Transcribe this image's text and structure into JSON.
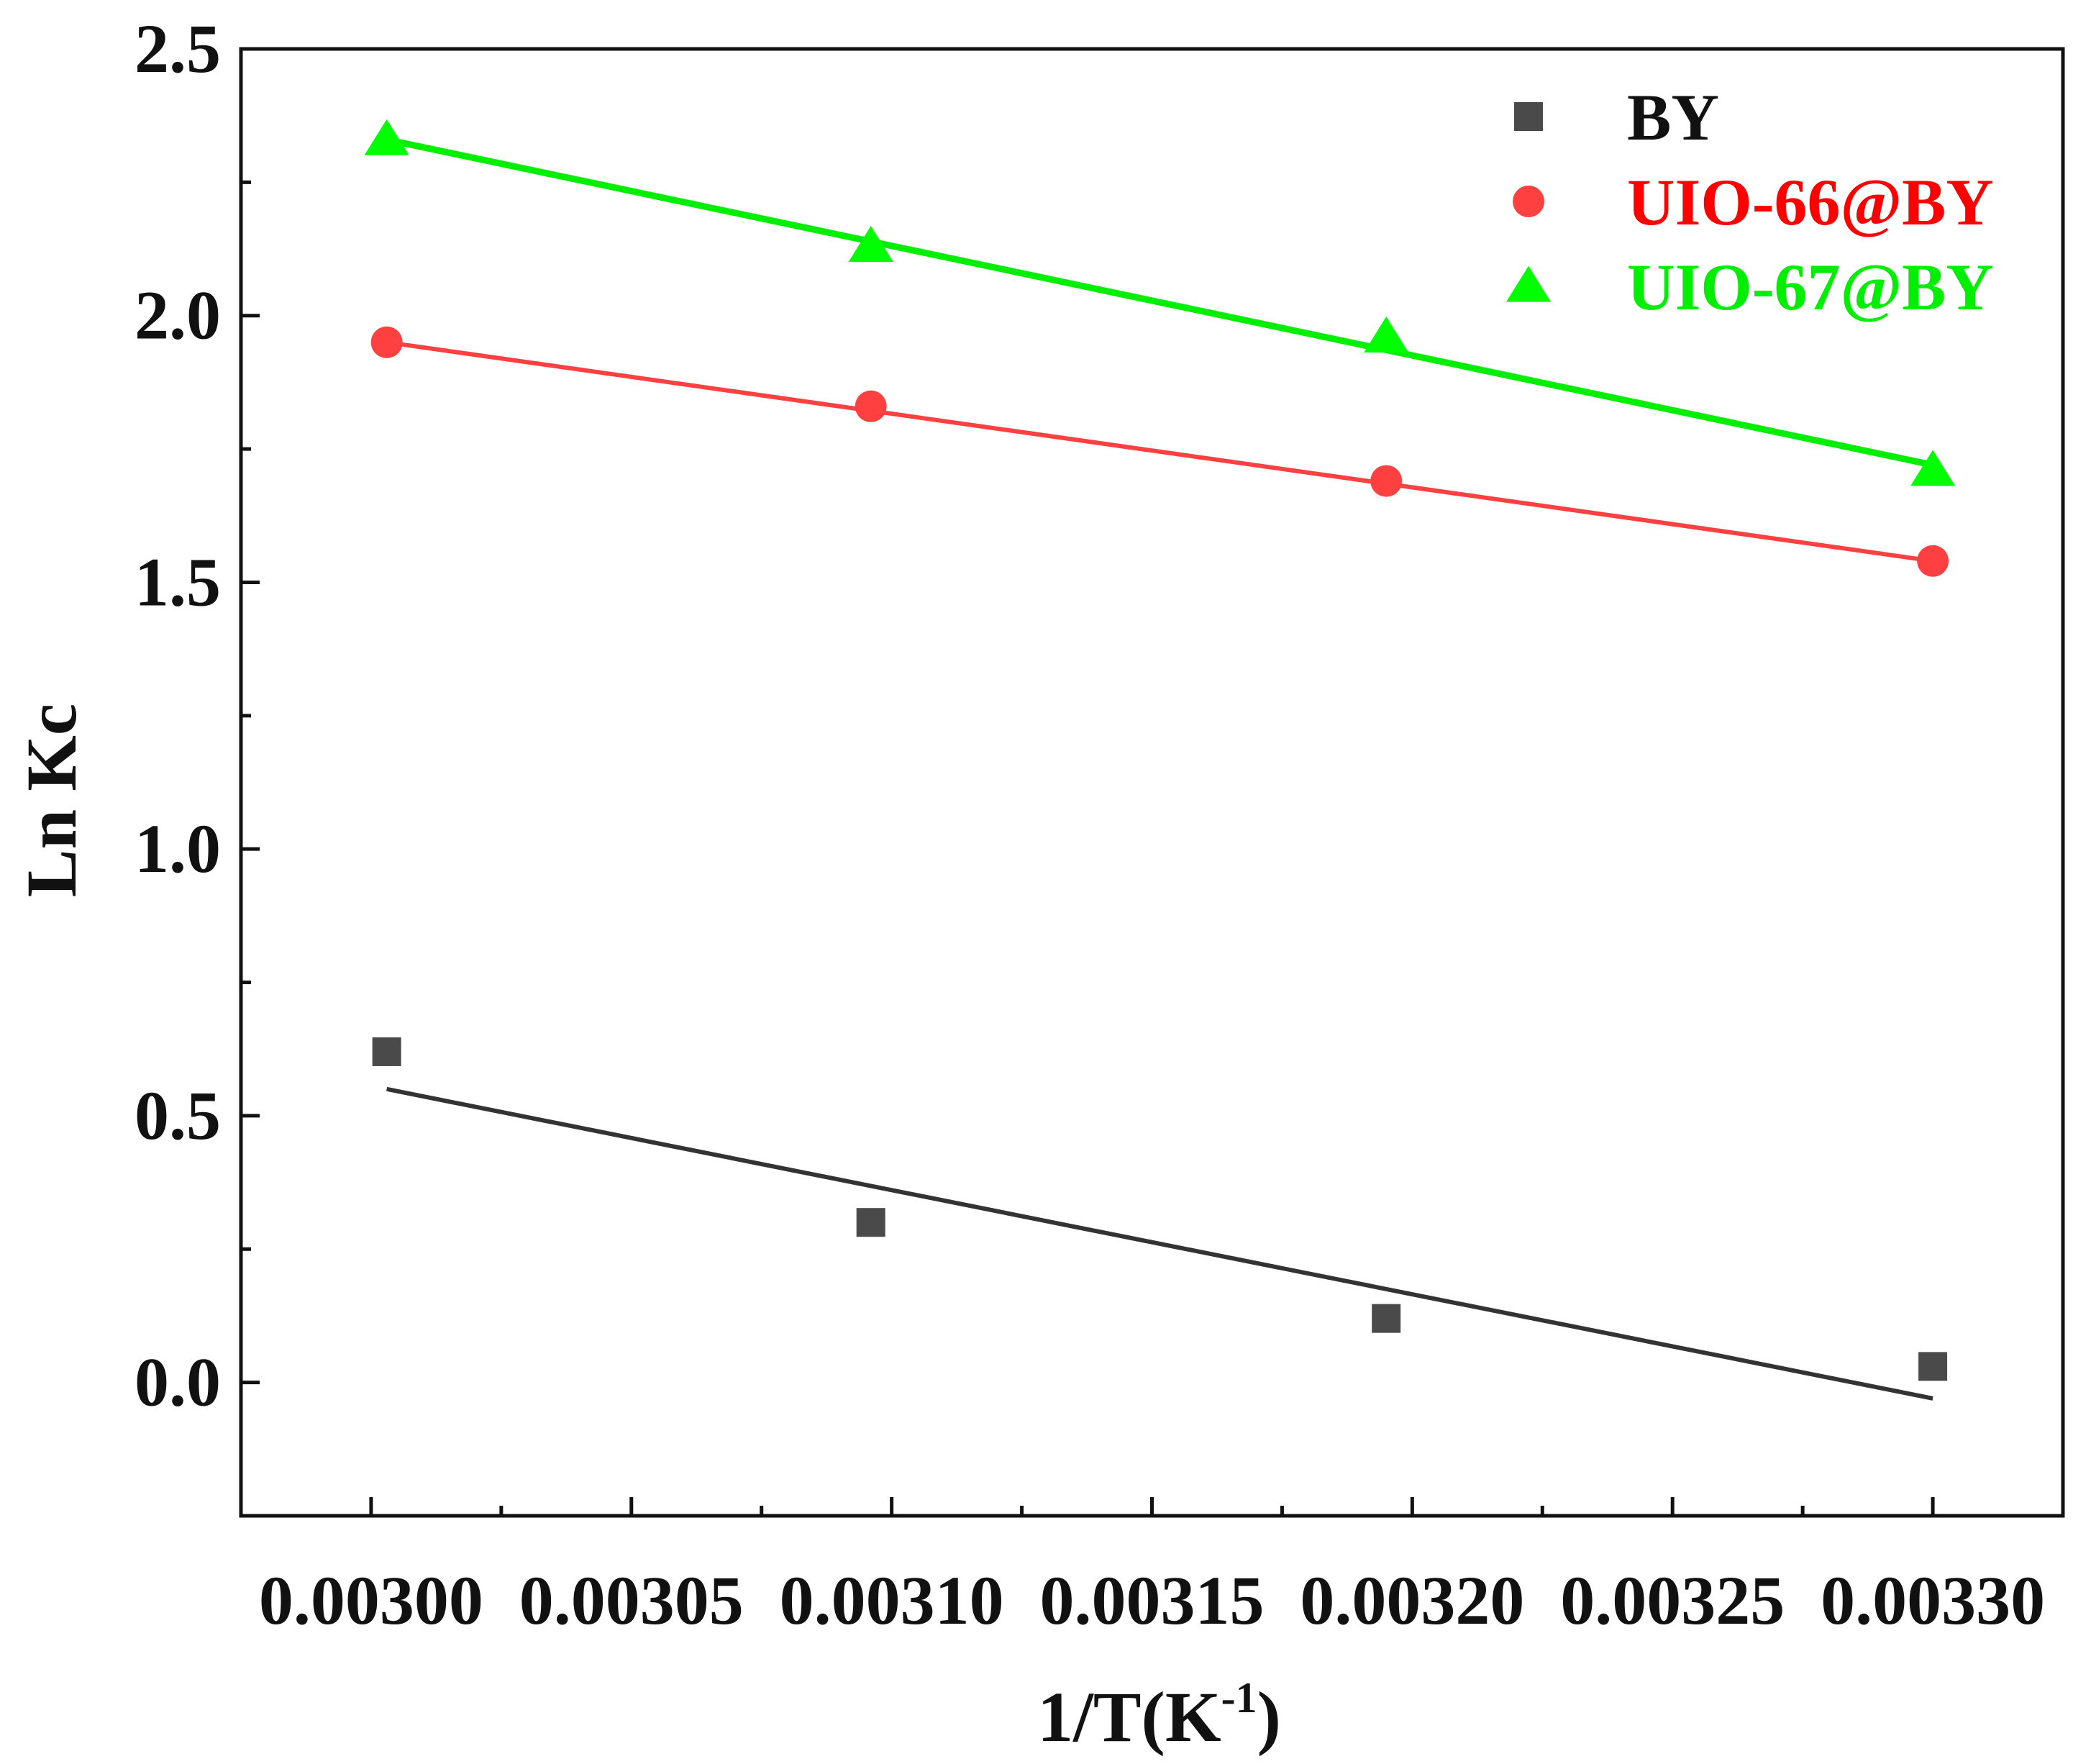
{
  "chart_data": {
    "type": "scatter",
    "xlabel": {
      "base": "1/T(K",
      "sup": "-1",
      "close": ")"
    },
    "ylabel": "Ln Kc",
    "xlim": [
      0.002975,
      0.003325
    ],
    "ylim": [
      -0.25,
      2.5
    ],
    "x_ticks": [
      0.003,
      0.00305,
      0.0031,
      0.00315,
      0.0032,
      0.00325,
      0.0033
    ],
    "x_tick_labels": [
      "0.00300",
      "0.00305",
      "0.00310",
      "0.00315",
      "0.00320",
      "0.00325",
      "0.00330"
    ],
    "x_minor_ticks": [
      0.003025,
      0.003075,
      0.003125,
      0.003175,
      0.003225,
      0.003275
    ],
    "y_ticks": [
      0.0,
      0.5,
      1.0,
      1.5,
      2.0,
      2.5
    ],
    "y_tick_labels": [
      "0.0",
      "0.5",
      "1.0",
      "1.5",
      "2.0",
      "2.5"
    ],
    "y_minor_ticks": [
      -0.25,
      0.25,
      0.75,
      1.25,
      1.75,
      2.25
    ],
    "grid": false,
    "legend_position": "top-right",
    "series": [
      {
        "name": "BY",
        "marker": "square",
        "color": "#4a4a4a",
        "line_color": "#333333",
        "label_color": "#111111",
        "x": [
          0.003003,
          0.003096,
          0.003195,
          0.0033
        ],
        "y": [
          0.62,
          0.3,
          0.12,
          0.03
        ],
        "fit": {
          "x": [
            0.003003,
            0.0033
          ],
          "y": [
            0.55,
            -0.03
          ]
        }
      },
      {
        "name": "UIO-66@BY",
        "marker": "circle",
        "color": "#ff4040",
        "line_color": "#ff4040",
        "label_color": "#ff0000",
        "x": [
          0.003003,
          0.003096,
          0.003195,
          0.0033
        ],
        "y": [
          1.95,
          1.83,
          1.69,
          1.54
        ],
        "fit": {
          "x": [
            0.003003,
            0.0033
          ],
          "y": [
            1.95,
            1.54
          ]
        }
      },
      {
        "name": "UIO-67@BY",
        "marker": "triangle",
        "color": "#00ff00",
        "line_color": "#00ee00",
        "label_color": "#00ee00",
        "x": [
          0.003003,
          0.003096,
          0.003195,
          0.0033
        ],
        "y": [
          2.33,
          2.13,
          1.96,
          1.71
        ],
        "fit": {
          "x": [
            0.003003,
            0.0033
          ],
          "y": [
            2.33,
            1.72
          ]
        }
      }
    ]
  }
}
